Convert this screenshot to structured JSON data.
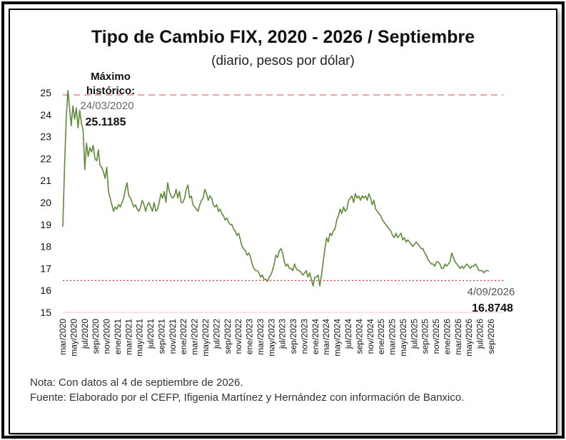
{
  "header": {
    "title": "Tipo de Cambio FIX, 2020 - 2026 / Septiembre",
    "subtitle": "(diario, pesos por dólar)"
  },
  "annotations": {
    "max_label_1": "Máximo",
    "max_label_2": "histórico:",
    "max_date": "24/03/2020",
    "max_value": "25.1185",
    "last_date": "4/09/2026",
    "last_value": "16.8748"
  },
  "notes": {
    "nota": "Nota: Con datos al 4 de septiembre de 2026.",
    "fuente": "Fuente: Elaborado por el CEFP, Ifigenia Martínez y Hernández con información de Banxico."
  },
  "colors": {
    "line": "#5e8a3a",
    "max_line": "#e8a3a3",
    "last_line": "#e03030",
    "axis_text": "#111111",
    "gray_text": "#666666"
  },
  "chart_data": {
    "type": "line",
    "title": "Tipo de Cambio FIX, 2020 - 2026 / Septiembre",
    "subtitle": "(diario, pesos por dólar)",
    "ylim": [
      15,
      25
    ],
    "yticks": [
      15,
      16,
      17,
      18,
      19,
      20,
      21,
      22,
      23,
      24,
      25
    ],
    "grid": false,
    "x_tick_labels": [
      "mar/2020",
      "may/2020",
      "jul/2020",
      "sep/2020",
      "nov/2020",
      "ene/2021",
      "mar/2021",
      "may/2021",
      "jul/2021",
      "sep/2021",
      "nov/2021",
      "ene/2022",
      "mar/2022",
      "may/2022",
      "jul/2022",
      "sep/2022",
      "nov/2022",
      "ene/2023",
      "mar/2023",
      "may/2023",
      "jul/2023",
      "sep/2023",
      "nov/2023",
      "ene/2024",
      "mar/2024",
      "may/2024",
      "jul/2024",
      "sep/2024",
      "nov/2024",
      "ene/2025",
      "mar/2025",
      "may/2025",
      "jul/2025",
      "sep/2025",
      "nov/2025",
      "ene/2026",
      "mar/2026",
      "may/2026",
      "jul/2026",
      "sep/2026"
    ],
    "reference_lines": [
      {
        "value": 24.9,
        "style": "dashed"
      },
      {
        "value": 16.45,
        "style": "dotted"
      }
    ],
    "series": [
      {
        "values": [
          18.9,
          21.6,
          23.8,
          25.1,
          24.3,
          23.5,
          24.4,
          23.8,
          24.3,
          23.4,
          24.2,
          23.6,
          23.3,
          21.5,
          22.7,
          22.1,
          22.5,
          22.3,
          22.6,
          22.0,
          21.9,
          22.4,
          21.7,
          21.6,
          21.4,
          21.1,
          21.6,
          20.5,
          20.2,
          19.9,
          19.6,
          19.8,
          19.7,
          19.9,
          19.8,
          20.0,
          20.2,
          20.6,
          20.9,
          20.3,
          20.2,
          20.0,
          19.8,
          19.9,
          19.7,
          19.6,
          19.8,
          20.1,
          19.9,
          19.6,
          19.9,
          20.0,
          19.8,
          19.6,
          20.0,
          19.6,
          19.7,
          20.0,
          20.4,
          20.2,
          20.5,
          20.0,
          20.9,
          20.5,
          20.3,
          20.2,
          20.3,
          20.6,
          20.2,
          20.5,
          20.0,
          20.0,
          20.2,
          20.6,
          20.8,
          20.2,
          20.3,
          19.9,
          19.8,
          19.7,
          19.6,
          19.9,
          20.1,
          20.2,
          20.6,
          20.4,
          20.1,
          20.3,
          20.2,
          19.9,
          19.8,
          19.9,
          19.6,
          19.7,
          19.5,
          19.4,
          19.2,
          19.3,
          19.1,
          19.0,
          19.0,
          18.8,
          18.7,
          18.5,
          18.6,
          18.3,
          18.0,
          17.9,
          17.8,
          17.6,
          17.7,
          17.5,
          17.2,
          17.0,
          16.9,
          16.9,
          16.8,
          16.6,
          16.7,
          16.5,
          16.5,
          16.4,
          16.6,
          16.7,
          16.9,
          17.2,
          17.6,
          17.5,
          17.8,
          17.9,
          17.7,
          17.3,
          17.1,
          17.2,
          17.0,
          17.0,
          16.9,
          17.2,
          17.0,
          16.9,
          16.9,
          16.8,
          16.7,
          16.8,
          16.9,
          16.6,
          16.8,
          16.5,
          16.2,
          16.6,
          16.6,
          16.7,
          16.2,
          16.7,
          17.3,
          17.9,
          18.4,
          18.2,
          18.6,
          18.5,
          18.7,
          18.8,
          19.2,
          19.4,
          19.7,
          19.5,
          19.8,
          19.6,
          19.7,
          20.1,
          20.2,
          20.3,
          20.0,
          20.4,
          20.2,
          20.3,
          20.1,
          20.3,
          20.2,
          20.3,
          20.1,
          20.4,
          20.2,
          19.9,
          20.1,
          19.7,
          19.6,
          19.5,
          19.4,
          19.2,
          19.1,
          19.0,
          18.9,
          18.8,
          18.7,
          18.5,
          18.4,
          18.6,
          18.4,
          18.5,
          18.6,
          18.3,
          18.4,
          18.2,
          18.3,
          18.2,
          18.1,
          18.0,
          18.1,
          18.2,
          18.1,
          18.0,
          17.9,
          17.9,
          17.7,
          17.6,
          17.4,
          17.3,
          17.2,
          17.2,
          17.1,
          17.3,
          17.3,
          17.2,
          17.0,
          17.0,
          17.2,
          17.1,
          17.2,
          17.3,
          17.7,
          17.5,
          17.3,
          17.2,
          17.1,
          17.0,
          17.1,
          17.0,
          17.1,
          17.2,
          17.1,
          17.0,
          17.1,
          17.1,
          17.2,
          17.1,
          16.9,
          16.9,
          16.9,
          16.8,
          16.9,
          16.9,
          16.87
        ]
      }
    ]
  }
}
